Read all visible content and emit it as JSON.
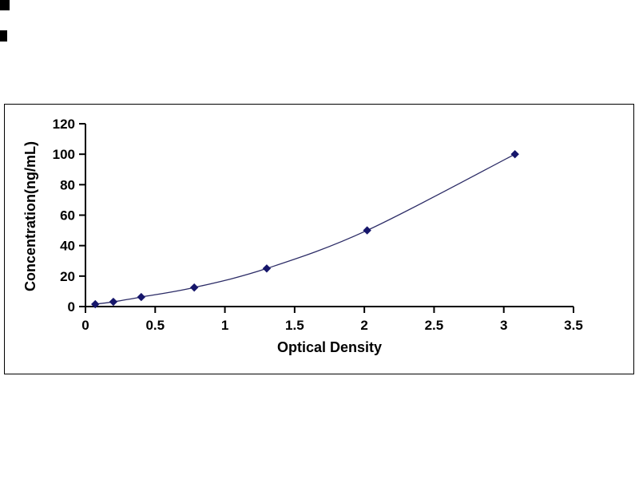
{
  "chart_data": {
    "type": "line",
    "title": "",
    "xlabel": "Optical Density",
    "ylabel": "Concentration(ng/mL)",
    "x": [
      0.07,
      0.2,
      0.4,
      0.78,
      1.3,
      2.02,
      3.08
    ],
    "y": [
      1.56,
      3.12,
      6.25,
      12.5,
      25,
      50,
      100
    ],
    "xlim": [
      0,
      3.5
    ],
    "ylim": [
      0,
      120
    ],
    "xticks": [
      0,
      0.5,
      1,
      1.5,
      2,
      2.5,
      3,
      3.5
    ],
    "xtick_labels": [
      "0",
      "0.5",
      "1",
      "1.5",
      "2",
      "2.5",
      "3",
      "3.5"
    ],
    "yticks": [
      0,
      20,
      40,
      60,
      80,
      100,
      120
    ],
    "ytick_labels": [
      "0",
      "20",
      "40",
      "60",
      "80",
      "100",
      "120"
    ],
    "marker": "diamond",
    "grid": false,
    "legend": null,
    "colors": {
      "axis": "#000000",
      "line": "#2b2b66",
      "marker": "#16166b",
      "frame_border": "#000000",
      "background": "#ffffff",
      "text": "#000000"
    }
  }
}
